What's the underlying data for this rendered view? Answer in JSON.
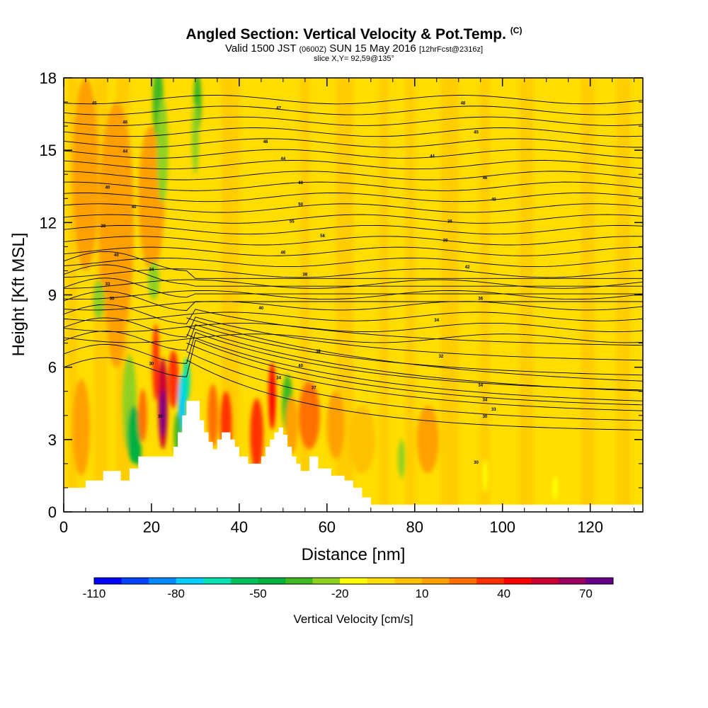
{
  "titles": {
    "main": "Angled Section: Vertical Velocity & Pot.Temp.",
    "main_units": "(C)",
    "valid_a": "Valid 1500 JST",
    "valid_b": "(0600Z)",
    "valid_c": "SUN 15 May 2016",
    "valid_d": "[12hrFcst@2316z]",
    "slice": "slice X,Y= 92,59@135°"
  },
  "colors": {
    "background_field": "#ffdd00",
    "terrain": "#ffffff",
    "contour": "#000000",
    "colorbar": [
      "#0000ff",
      "#0044ff",
      "#0088ff",
      "#00ccff",
      "#00e0b0",
      "#00c060",
      "#00b040",
      "#40b820",
      "#90d020",
      "#ffff00",
      "#ffdd00",
      "#ffc000",
      "#ffa000",
      "#ff7000",
      "#ff3000",
      "#ff0000",
      "#cc0030",
      "#990060",
      "#660088"
    ]
  },
  "chart_data": {
    "type": "heatmap",
    "xlabel": "Distance [nm]",
    "ylabel": "Height [Kft MSL]",
    "xlim": [
      0,
      132
    ],
    "ylim": [
      0,
      18
    ],
    "x_ticks": [
      0,
      20,
      40,
      60,
      80,
      100,
      120
    ],
    "y_ticks": [
      0,
      3,
      6,
      9,
      12,
      15,
      18
    ],
    "colorbar": {
      "title": "Vertical Velocity [cm/s]",
      "min": -110,
      "max": 80,
      "step": 10,
      "tick_values": [
        -110,
        -80,
        -50,
        -20,
        10,
        40,
        70
      ]
    },
    "terrain_profile": [
      [
        0,
        1
      ],
      [
        5,
        1
      ],
      [
        5,
        1.3
      ],
      [
        9,
        1.3
      ],
      [
        9,
        1.7
      ],
      [
        13,
        1.7
      ],
      [
        13,
        1.3
      ],
      [
        15,
        1.3
      ],
      [
        15,
        1.8
      ],
      [
        17,
        1.8
      ],
      [
        17,
        2.3
      ],
      [
        20,
        2.3
      ],
      [
        20,
        2.3
      ],
      [
        25,
        2.3
      ],
      [
        25,
        2.7
      ],
      [
        26,
        2.7
      ],
      [
        26,
        3.3
      ],
      [
        27,
        3.3
      ],
      [
        27,
        4.0
      ],
      [
        28,
        4.0
      ],
      [
        28,
        4.6
      ],
      [
        31,
        4.6
      ],
      [
        31,
        3.8
      ],
      [
        32,
        3.8
      ],
      [
        32,
        3.3
      ],
      [
        33,
        3.3
      ],
      [
        33,
        2.9
      ],
      [
        34,
        2.9
      ],
      [
        34,
        2.6
      ],
      [
        35,
        2.6
      ],
      [
        35,
        3.0
      ],
      [
        36,
        3.0
      ],
      [
        36,
        3.3
      ],
      [
        38,
        3.3
      ],
      [
        38,
        3.0
      ],
      [
        39,
        3.0
      ],
      [
        39,
        2.7
      ],
      [
        40,
        2.7
      ],
      [
        40,
        2.3
      ],
      [
        42,
        2.3
      ],
      [
        42,
        2.0
      ],
      [
        45,
        2.0
      ],
      [
        45,
        2.3
      ],
      [
        46,
        2.3
      ],
      [
        46,
        2.7
      ],
      [
        47,
        2.7
      ],
      [
        47,
        3.0
      ],
      [
        48,
        3.0
      ],
      [
        48,
        3.3
      ],
      [
        49,
        3.3
      ],
      [
        49,
        3.5
      ],
      [
        50,
        3.5
      ],
      [
        50,
        3.2
      ],
      [
        51,
        3.2
      ],
      [
        51,
        2.7
      ],
      [
        52,
        2.7
      ],
      [
        52,
        2.3
      ],
      [
        53,
        2.3
      ],
      [
        53,
        2.0
      ],
      [
        54,
        2.0
      ],
      [
        54,
        1.7
      ],
      [
        56,
        1.7
      ],
      [
        56,
        2.3
      ],
      [
        58,
        2.3
      ],
      [
        58,
        1.8
      ],
      [
        61,
        1.8
      ],
      [
        61,
        1.5
      ],
      [
        64,
        1.5
      ],
      [
        64,
        1.3
      ],
      [
        66,
        1.3
      ],
      [
        66,
        1.0
      ],
      [
        68,
        1.0
      ],
      [
        68,
        0.6
      ],
      [
        70,
        0.6
      ],
      [
        70,
        0.3
      ],
      [
        132,
        0.3
      ]
    ],
    "theta_contour_labels": [
      {
        "x": 7,
        "y": 16.9,
        "text": "45"
      },
      {
        "x": 14,
        "y": 16.1,
        "text": "46"
      },
      {
        "x": 14,
        "y": 14.9,
        "text": "44"
      },
      {
        "x": 10,
        "y": 13.4,
        "text": "40"
      },
      {
        "x": 16,
        "y": 12.6,
        "text": "40"
      },
      {
        "x": 9,
        "y": 11.8,
        "text": "38"
      },
      {
        "x": 12,
        "y": 10.6,
        "text": "40"
      },
      {
        "x": 20,
        "y": 10.0,
        "text": "34"
      },
      {
        "x": 10,
        "y": 9.4,
        "text": "33"
      },
      {
        "x": 11,
        "y": 8.8,
        "text": "30"
      },
      {
        "x": 20,
        "y": 6.1,
        "text": "30"
      },
      {
        "x": 22,
        "y": 3.9,
        "text": "30"
      },
      {
        "x": 49,
        "y": 16.7,
        "text": "47"
      },
      {
        "x": 46,
        "y": 15.3,
        "text": "48"
      },
      {
        "x": 50,
        "y": 14.6,
        "text": "44"
      },
      {
        "x": 54,
        "y": 13.6,
        "text": "48"
      },
      {
        "x": 54,
        "y": 12.7,
        "text": "50"
      },
      {
        "x": 52,
        "y": 12.0,
        "text": "55"
      },
      {
        "x": 59,
        "y": 11.4,
        "text": "56"
      },
      {
        "x": 50,
        "y": 10.7,
        "text": "46"
      },
      {
        "x": 55,
        "y": 9.8,
        "text": "38"
      },
      {
        "x": 45,
        "y": 8.4,
        "text": "40"
      },
      {
        "x": 58,
        "y": 6.6,
        "text": "38"
      },
      {
        "x": 54,
        "y": 6.0,
        "text": "40"
      },
      {
        "x": 49,
        "y": 5.5,
        "text": "34"
      },
      {
        "x": 57,
        "y": 5.1,
        "text": "37"
      },
      {
        "x": 91,
        "y": 16.9,
        "text": "48"
      },
      {
        "x": 94,
        "y": 15.7,
        "text": "45"
      },
      {
        "x": 84,
        "y": 14.7,
        "text": "44"
      },
      {
        "x": 96,
        "y": 13.8,
        "text": "46"
      },
      {
        "x": 98,
        "y": 12.9,
        "text": "40"
      },
      {
        "x": 88,
        "y": 12.0,
        "text": "36"
      },
      {
        "x": 87,
        "y": 11.2,
        "text": "39"
      },
      {
        "x": 92,
        "y": 10.1,
        "text": "42"
      },
      {
        "x": 95,
        "y": 8.8,
        "text": "36"
      },
      {
        "x": 85,
        "y": 7.9,
        "text": "34"
      },
      {
        "x": 86,
        "y": 6.4,
        "text": "32"
      },
      {
        "x": 95,
        "y": 5.2,
        "text": "34"
      },
      {
        "x": 96,
        "y": 4.6,
        "text": "34"
      },
      {
        "x": 98,
        "y": 4.2,
        "text": "33"
      },
      {
        "x": 96,
        "y": 3.9,
        "text": "30"
      },
      {
        "x": 94,
        "y": 2.0,
        "text": "30"
      }
    ]
  }
}
